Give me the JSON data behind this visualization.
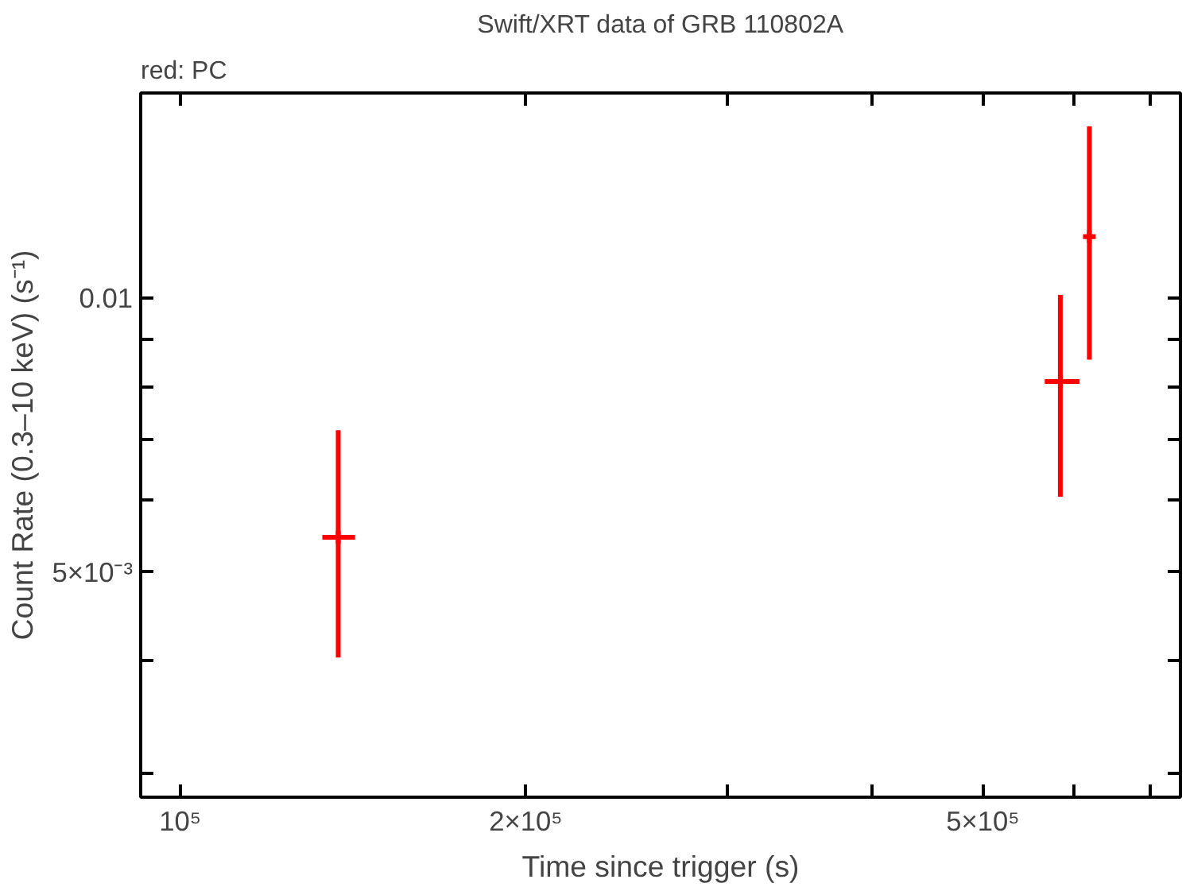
{
  "chart_data": {
    "type": "scatter",
    "title": "Swift/XRT data of GRB 110802A",
    "subtitle": "red: PC",
    "xlabel": "Time since trigger (s)",
    "ylabel": "Count Rate (0.3–10 keV) (s⁻¹)",
    "log": "xy",
    "grid": false,
    "marker": "cross",
    "xlim": [
      92400,
      743000
    ],
    "ylim": [
      0.00283,
      0.0168
    ],
    "xticks": [
      {
        "value": 100000,
        "label": "10⁵"
      },
      {
        "value": 200000,
        "label": "2×10⁵"
      },
      {
        "value": 300000,
        "label": null
      },
      {
        "value": 400000,
        "label": null
      },
      {
        "value": 500000,
        "label": "5×10⁵"
      },
      {
        "value": 600000,
        "label": null
      },
      {
        "value": 700000,
        "label": null
      }
    ],
    "yticks": [
      {
        "value": 0.003,
        "label": null
      },
      {
        "value": 0.004,
        "label": null
      },
      {
        "value": 0.005,
        "label": "5×10⁻³"
      },
      {
        "value": 0.006,
        "label": null
      },
      {
        "value": 0.007,
        "label": null
      },
      {
        "value": 0.008,
        "label": null
      },
      {
        "value": 0.009,
        "label": null
      },
      {
        "value": 0.01,
        "label": "0.01"
      }
    ],
    "series": [
      {
        "color": "#ff0000",
        "x": [
          137300,
          584000,
          619000
        ],
        "values": [
          0.00546,
          0.0081,
          0.01168
        ],
        "errors": [
          [
            0.00403,
            0.00716
          ],
          [
            0.00605,
            0.01008
          ],
          [
            0.00856,
            0.01544
          ]
        ],
        "xerrors": [
          [
            133000,
            142000
          ],
          [
            566000,
            607000
          ],
          [
            615000,
            623000
          ]
        ]
      }
    ]
  }
}
